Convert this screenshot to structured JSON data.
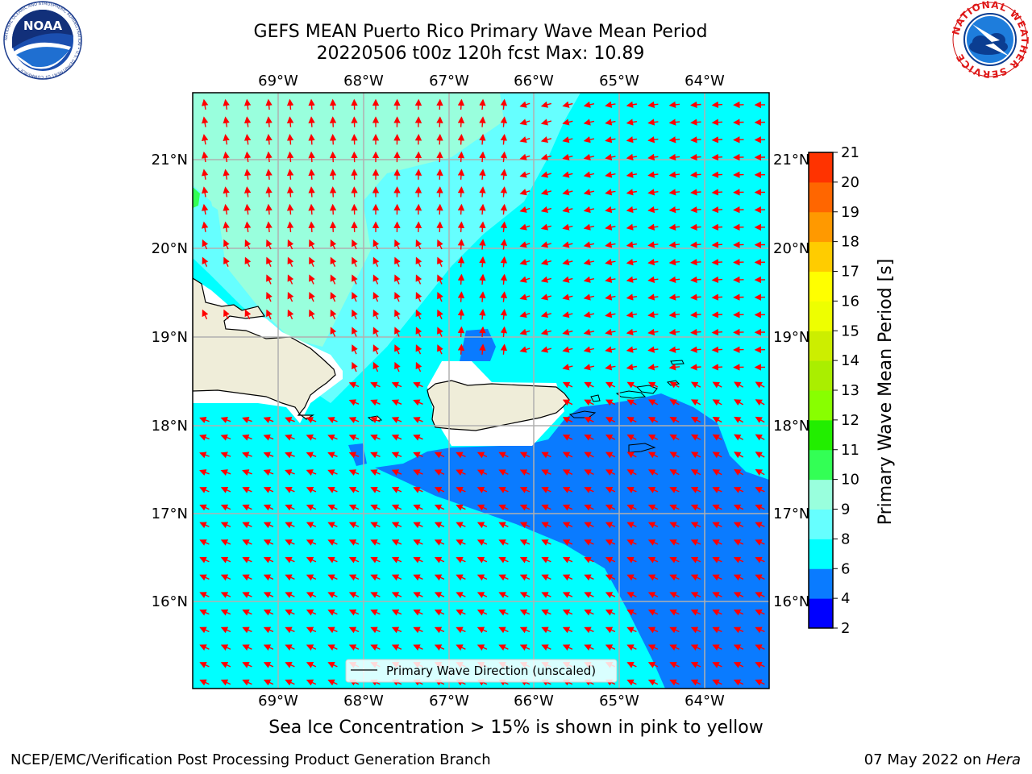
{
  "header": {
    "title_line1": "GEFS MEAN Puerto Rico Primary Wave Mean Period",
    "title_line2": "20220506 t00z 120h fcst   Max: 10.89"
  },
  "logos": {
    "left": {
      "name": "NOAA",
      "ring_text": "NATIONAL OCEANIC AND ATMOSPHERIC ADMINISTRATION • U.S. DEPARTMENT OF COMMERCE •"
    },
    "right": {
      "ring_text": "NATIONAL WEATHER SERVICE"
    }
  },
  "map": {
    "lon_labels": [
      "69°W",
      "68°W",
      "67°W",
      "66°W",
      "65°W",
      "64°W"
    ],
    "lat_labels": [
      "21°N",
      "20°N",
      "19°N",
      "18°N",
      "17°N",
      "16°N"
    ],
    "legend_label": "Primary Wave Direction (unscaled)",
    "colors": {
      "sea_6_8": "#00ffff",
      "sea_8_9": "#66ffff",
      "sea_9_10": "#99ffdd",
      "sea_4_6": "#0a7bff",
      "land": "#efedd9",
      "arrow": "#ff0000",
      "grid": "#b0b0b0"
    }
  },
  "colorbar": {
    "label": "Primary Wave Mean Period [s]",
    "ticks": [
      "2",
      "4",
      "6",
      "8",
      "9",
      "10",
      "11",
      "12",
      "13",
      "14",
      "15",
      "16",
      "17",
      "18",
      "19",
      "20",
      "21"
    ],
    "colors": [
      "#0000ff",
      "#0a7bff",
      "#00ffff",
      "#66ffff",
      "#99ffdd",
      "#33ff55",
      "#22ee00",
      "#88ff00",
      "#aaee00",
      "#ccee00",
      "#eeff00",
      "#ffff00",
      "#ffcc00",
      "#ff9900",
      "#ff6600",
      "#ff3300",
      "#ff0000"
    ]
  },
  "footer": {
    "note": "Sea Ice Concentration > 15% is shown in pink to yellow",
    "left": "NCEP/EMC/Verification Post Processing Product Generation Branch",
    "right_date": "07 May 2022 on ",
    "right_host": "Hera"
  }
}
